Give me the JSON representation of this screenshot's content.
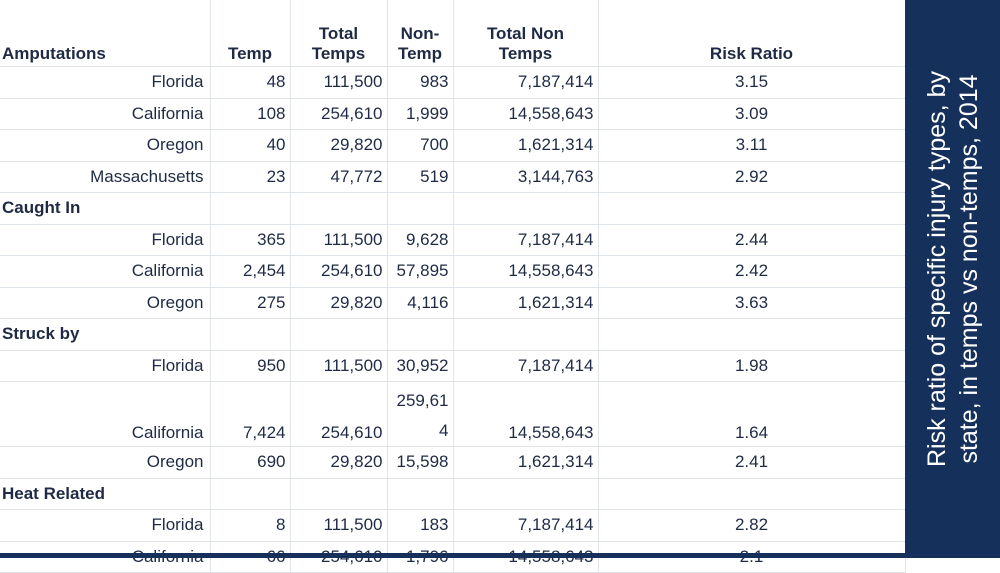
{
  "headers": {
    "category": "Amputations",
    "temp": "Temp",
    "total_temps_1": "Total",
    "total_temps_2": "Temps",
    "non_temp_1": "Non-",
    "non_temp_2": "Temp",
    "total_non_1": "Total Non",
    "total_non_2": "Temps",
    "risk_ratio": "Risk Ratio"
  },
  "groups": [
    {
      "name": "Amputations",
      "rows": [
        {
          "state": "Florida",
          "temp": "48",
          "total_temps": "111,500",
          "non_temp": "983",
          "total_non": "7,187,414",
          "risk_ratio": "3.15"
        },
        {
          "state": "California",
          "temp": "108",
          "total_temps": "254,610",
          "non_temp": "1,999",
          "total_non": "14,558,643",
          "risk_ratio": "3.09"
        },
        {
          "state": "Oregon",
          "temp": "40",
          "total_temps": "29,820",
          "non_temp": "700",
          "total_non": "1,621,314",
          "risk_ratio": "3.11"
        },
        {
          "state": "Massachusetts",
          "temp": "23",
          "total_temps": "47,772",
          "non_temp": "519",
          "total_non": "3,144,763",
          "risk_ratio": "2.92"
        }
      ]
    },
    {
      "name": "Caught In",
      "rows": [
        {
          "state": "Florida",
          "temp": "365",
          "total_temps": "111,500",
          "non_temp": "9,628",
          "total_non": "7,187,414",
          "risk_ratio": "2.44"
        },
        {
          "state": "California",
          "temp": "2,454",
          "total_temps": "254,610",
          "non_temp": "57,895",
          "total_non": "14,558,643",
          "risk_ratio": "2.42"
        },
        {
          "state": "Oregon",
          "temp": "275",
          "total_temps": "29,820",
          "non_temp": "4,116",
          "total_non": "1,621,314",
          "risk_ratio": "3.63"
        }
      ]
    },
    {
      "name": "Struck by",
      "rows": [
        {
          "state": "Florida",
          "temp": "950",
          "total_temps": "111,500",
          "non_temp": "30,952",
          "total_non": "7,187,414",
          "risk_ratio": "1.98"
        },
        {
          "state": "California",
          "temp": "7,424",
          "total_temps": "254,610",
          "non_temp": "259,614",
          "total_non": "14,558,643",
          "risk_ratio": "1.64"
        },
        {
          "state": "Oregon",
          "temp": "690",
          "total_temps": "29,820",
          "non_temp": "15,598",
          "total_non": "1,621,314",
          "risk_ratio": "2.41"
        }
      ]
    },
    {
      "name": "Heat Related",
      "rows": [
        {
          "state": "Florida",
          "temp": "8",
          "total_temps": "111,500",
          "non_temp": "183",
          "total_non": "7,187,414",
          "risk_ratio": "2.82"
        },
        {
          "state": "California",
          "temp": "66",
          "total_temps": "254,610",
          "non_temp": "1,796",
          "total_non": "14,558,643",
          "risk_ratio": "2.1"
        }
      ]
    }
  ],
  "side_title_line1": "Risk ratio of specific injury types, by",
  "side_title_line2": "state,  in temps vs non-temps, 2014",
  "colors": {
    "panel": "#15305a",
    "text": "#1f2a44"
  }
}
